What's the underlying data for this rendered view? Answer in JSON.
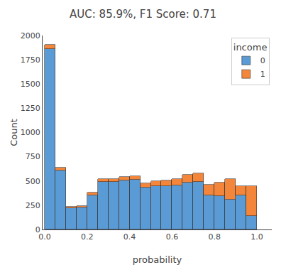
{
  "chart_data": {
    "type": "histogram",
    "title": "AUC: 85.9%, F1 Score: 0.71",
    "xlabel": "probability",
    "ylabel": "Count",
    "bins": [
      0.0,
      0.05,
      0.1,
      0.15,
      0.2,
      0.25,
      0.3,
      0.35,
      0.4,
      0.45,
      0.5,
      0.55,
      0.6,
      0.65,
      0.7,
      0.75,
      0.8,
      0.85,
      0.9,
      0.95,
      1.0
    ],
    "series": [
      {
        "name": "0",
        "color": "#5B9BD5",
        "values": [
          1860,
          610,
          220,
          230,
          355,
          490,
          490,
          505,
          510,
          430,
          445,
          450,
          455,
          485,
          490,
          350,
          345,
          305,
          355,
          140
        ]
      },
      {
        "name": "1",
        "color": "#F4863B",
        "values": [
          45,
          25,
          15,
          15,
          25,
          30,
          30,
          35,
          40,
          45,
          50,
          55,
          65,
          80,
          90,
          115,
          140,
          215,
          90,
          310
        ]
      }
    ],
    "stacked": true,
    "xlim": [
      -0.01,
      1.07
    ],
    "xticks": [
      {
        "value": 0,
        "label": "0.0"
      },
      0.2,
      0.4,
      0.6,
      0.8,
      {
        "value": 1,
        "label": "1.0"
      }
    ],
    "ylim": [
      0,
      2000
    ],
    "yticks": [
      0,
      250,
      500,
      750,
      1000,
      1250,
      1500,
      1750,
      2000
    ],
    "legend": "upper right",
    "legend_title": "income",
    "grid": false
  }
}
